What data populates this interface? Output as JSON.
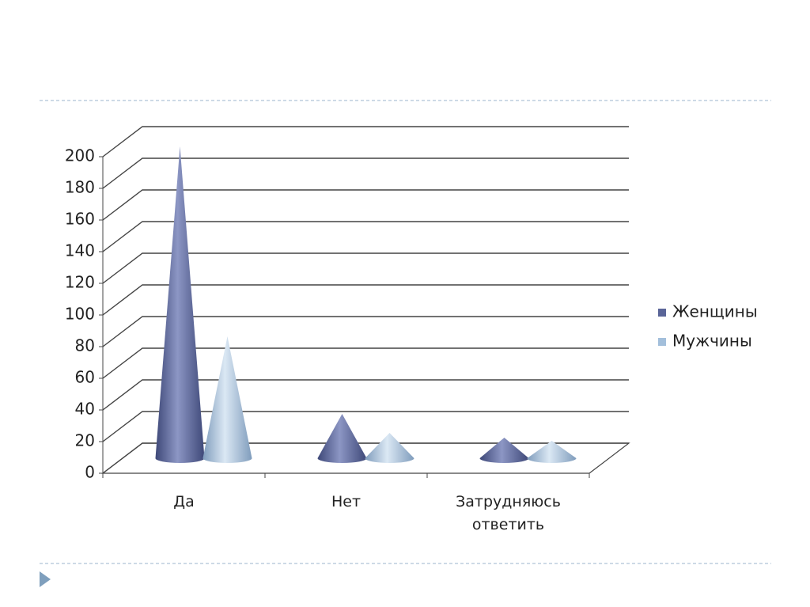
{
  "chart_data": {
    "type": "cone3d",
    "categories": [
      "Да",
      "Нет",
      "Затрудняюсь ответить"
    ],
    "series": [
      {
        "name": "Женщины",
        "color": "#5a6598",
        "values": [
          197,
          28,
          13
        ]
      },
      {
        "name": "Мужчины",
        "color": "#a3bfdb",
        "values": [
          77,
          16,
          11
        ]
      }
    ],
    "ylim": [
      0,
      200
    ],
    "yticks": [
      0,
      20,
      40,
      60,
      80,
      100,
      120,
      140,
      160,
      180,
      200
    ],
    "grid": true,
    "legend": "right"
  }
}
